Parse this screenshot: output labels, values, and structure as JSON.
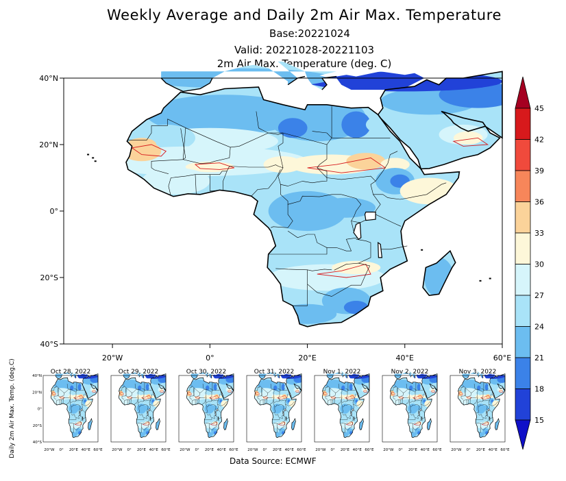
{
  "title": "Weekly Average and Daily 2m Air Max. Temperature",
  "base": "Base:20221024",
  "valid": "Valid: 20221028-20221103",
  "variable": "2m Air Max. Temperature (deg. C)",
  "source": "Data Source: ECMWF",
  "daily_axis_label": "Daily 2m Air Max. Temp. (deg.C)",
  "map": {
    "lat_labels": [
      "40°N",
      "20°N",
      "0°",
      "20°S",
      "40°S"
    ],
    "lon_labels": [
      "20°W",
      "0°",
      "20°E",
      "40°E",
      "60°E"
    ],
    "lat_range": [
      -40,
      40
    ],
    "lon_range": [
      -30,
      60
    ]
  },
  "colorbar": {
    "levels": [
      "45",
      "42",
      "39",
      "36",
      "33",
      "30",
      "27",
      "24",
      "21",
      "18",
      "15"
    ],
    "colors": [
      "#a50021",
      "#d7191c",
      "#f04a3c",
      "#f7865a",
      "#fbd39a",
      "#fdf7d9",
      "#d6f5fb",
      "#a9e3f8",
      "#6cbdf0",
      "#3b82e8",
      "#2142d8",
      "#1010c8"
    ]
  },
  "daily": [
    {
      "date": "Oct 28, 2022"
    },
    {
      "date": "Oct 29, 2022"
    },
    {
      "date": "Oct 30, 2022"
    },
    {
      "date": "Oct 31, 2022"
    },
    {
      "date": "Nov 1, 2022"
    },
    {
      "date": "Nov 2, 2022"
    },
    {
      "date": "Nov 3, 2022"
    }
  ],
  "thumb_lat_labels": [
    "40°N",
    "20°N",
    "0°",
    "20°S",
    "40°S"
  ],
  "thumb_lon_labels": [
    "20°W",
    "0°",
    "20°E",
    "40°E",
    "60°E"
  ]
}
